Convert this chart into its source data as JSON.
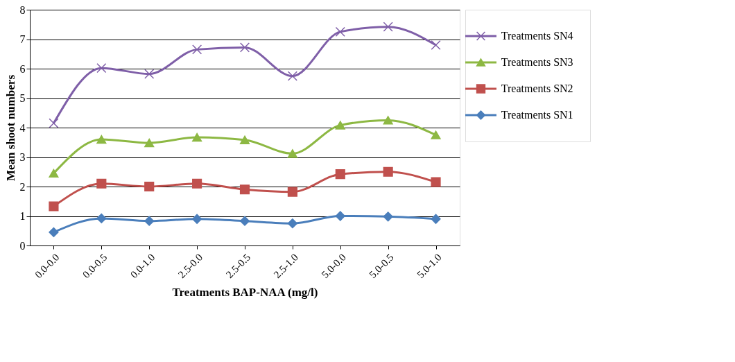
{
  "chart_data": {
    "type": "line",
    "xlabel": "Treatments BAP-NAA  (mg/l)",
    "ylabel": "Mean shoot numbers",
    "categories": [
      "0.0-0.0",
      "0.0-0.5",
      "0.0-1.0",
      "2.5-0.0",
      "2.5-0.5",
      "2.5-1.0",
      "5.0-0.0",
      "5.0-0.5",
      "5.0-1.0"
    ],
    "series": [
      {
        "name": "Treatments SN4",
        "color": "#7f5fa8",
        "marker": "cross",
        "values": [
          4.15,
          6.02,
          5.82,
          6.65,
          6.72,
          5.75,
          7.25,
          7.42,
          6.8
        ]
      },
      {
        "name": "Treatments SN3",
        "color": "#8db843",
        "marker": "triangle",
        "values": [
          2.45,
          3.6,
          3.48,
          3.67,
          3.58,
          3.12,
          4.08,
          4.25,
          3.75
        ]
      },
      {
        "name": "Treatments SN2",
        "color": "#c0504d",
        "marker": "square",
        "values": [
          1.33,
          2.1,
          2.0,
          2.1,
          1.9,
          1.82,
          2.42,
          2.5,
          2.15
        ]
      },
      {
        "name": "Treatments SN1",
        "color": "#4a7ebb",
        "marker": "diamond",
        "values": [
          0.45,
          0.92,
          0.83,
          0.9,
          0.83,
          0.75,
          1.0,
          0.98,
          0.9
        ]
      }
    ],
    "ylim": [
      0,
      8
    ],
    "yticks": [
      0,
      1,
      2,
      3,
      4,
      5,
      6,
      7,
      8
    ],
    "grid": "y",
    "legend": "right",
    "line_style": "solid"
  }
}
